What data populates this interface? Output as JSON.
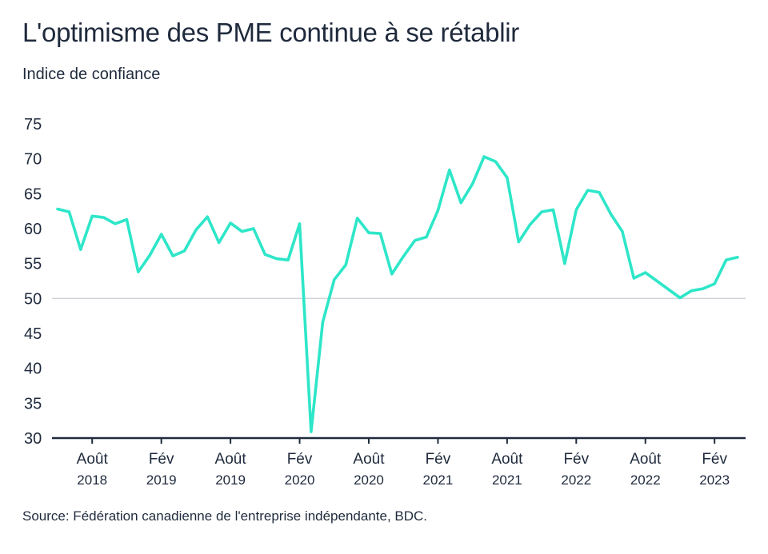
{
  "chart_data": {
    "type": "line",
    "title": "L'optimisme des PME continue à se rétablir",
    "subtitle": "Indice de confiance",
    "source": "Source: Fédération canadienne de l'entreprise indépendante, BDC.",
    "ylim": [
      30,
      75
    ],
    "yticks": [
      30,
      35,
      40,
      45,
      50,
      55,
      60,
      65,
      70,
      75
    ],
    "reference_line": 50,
    "x_start": "2018-05",
    "x_end": "2023-04",
    "x_ticks": [
      {
        "month": "2018-08",
        "label": "Août",
        "year": "2018"
      },
      {
        "month": "2019-02",
        "label": "Fév",
        "year": "2019"
      },
      {
        "month": "2019-08",
        "label": "Août",
        "year": "2019"
      },
      {
        "month": "2020-02",
        "label": "Fév",
        "year": "2020"
      },
      {
        "month": "2020-08",
        "label": "Août",
        "year": "2020"
      },
      {
        "month": "2021-02",
        "label": "Fév",
        "year": "2021"
      },
      {
        "month": "2021-08",
        "label": "Août",
        "year": "2021"
      },
      {
        "month": "2022-02",
        "label": "Fév",
        "year": "2022"
      },
      {
        "month": "2022-08",
        "label": "Août",
        "year": "2022"
      },
      {
        "month": "2023-02",
        "label": "Fév",
        "year": "2023"
      }
    ],
    "series": [
      {
        "color": "#2ee6c8",
        "points": [
          [
            "2018-05",
            62.8
          ],
          [
            "2018-06",
            62.4
          ],
          [
            "2018-07",
            57.0
          ],
          [
            "2018-08",
            61.8
          ],
          [
            "2018-09",
            61.6
          ],
          [
            "2018-10",
            60.7
          ],
          [
            "2018-11",
            61.3
          ],
          [
            "2018-12",
            53.8
          ],
          [
            "2019-01",
            56.2
          ],
          [
            "2019-02",
            59.2
          ],
          [
            "2019-03",
            56.1
          ],
          [
            "2019-04",
            56.8
          ],
          [
            "2019-05",
            59.8
          ],
          [
            "2019-06",
            61.7
          ],
          [
            "2019-07",
            58.0
          ],
          [
            "2019-08",
            60.8
          ],
          [
            "2019-09",
            59.6
          ],
          [
            "2019-10",
            60.0
          ],
          [
            "2019-11",
            56.3
          ],
          [
            "2019-12",
            55.7
          ],
          [
            "2020-01",
            55.5
          ],
          [
            "2020-02",
            60.7
          ],
          [
            "2020-03",
            30.9
          ],
          [
            "2020-04",
            46.6
          ],
          [
            "2020-05",
            52.7
          ],
          [
            "2020-06",
            54.8
          ],
          [
            "2020-07",
            61.5
          ],
          [
            "2020-08",
            59.4
          ],
          [
            "2020-09",
            59.3
          ],
          [
            "2020-10",
            53.5
          ],
          [
            "2020-11",
            56.0
          ],
          [
            "2020-12",
            58.3
          ],
          [
            "2021-01",
            58.8
          ],
          [
            "2021-02",
            62.6
          ],
          [
            "2021-03",
            68.4
          ],
          [
            "2021-04",
            63.7
          ],
          [
            "2021-05",
            66.4
          ],
          [
            "2021-06",
            70.3
          ],
          [
            "2021-07",
            69.6
          ],
          [
            "2021-08",
            67.3
          ],
          [
            "2021-09",
            58.1
          ],
          [
            "2021-10",
            60.6
          ],
          [
            "2021-11",
            62.4
          ],
          [
            "2021-12",
            62.7
          ],
          [
            "2022-01",
            55.0
          ],
          [
            "2022-02",
            62.7
          ],
          [
            "2022-03",
            65.5
          ],
          [
            "2022-04",
            65.2
          ],
          [
            "2022-05",
            62.1
          ],
          [
            "2022-06",
            59.6
          ],
          [
            "2022-07",
            52.9
          ],
          [
            "2022-08",
            53.7
          ],
          [
            "2022-09",
            52.5
          ],
          [
            "2022-10",
            51.3
          ],
          [
            "2022-11",
            50.1
          ],
          [
            "2022-12",
            51.1
          ],
          [
            "2023-01",
            51.4
          ],
          [
            "2023-02",
            52.1
          ],
          [
            "2023-03",
            55.5
          ],
          [
            "2023-04",
            55.9
          ]
        ]
      }
    ]
  }
}
